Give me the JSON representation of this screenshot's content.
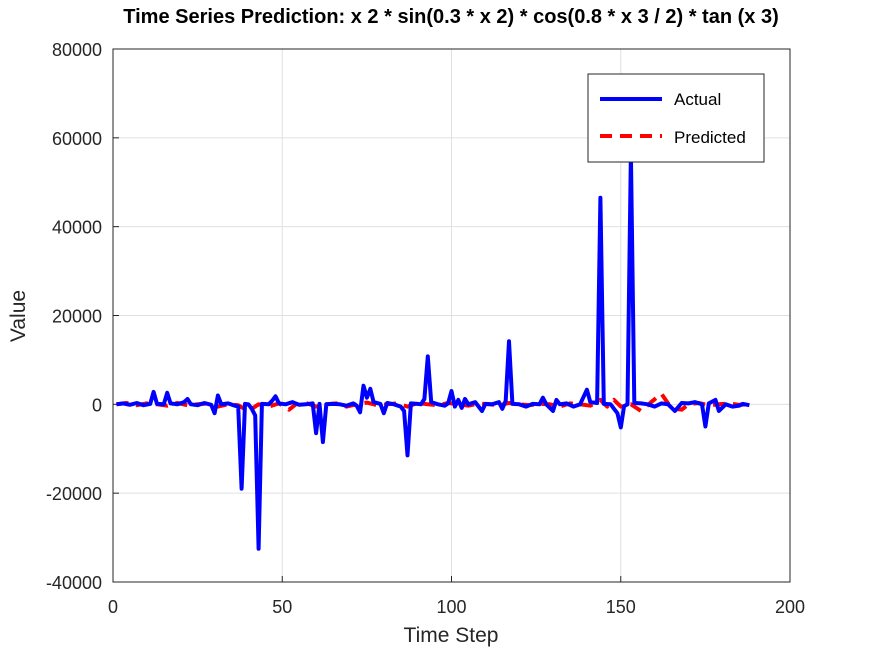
{
  "chart_data": {
    "type": "line",
    "title": "Time Series Prediction: x  2 * sin(0.3 * x  2) * cos(0.8 * x  3 / 2) * tan (x  3)",
    "xlabel": "Time Step",
    "ylabel": "Value",
    "xlim": [
      0,
      200
    ],
    "ylim": [
      -40000,
      80000
    ],
    "xticks": [
      0,
      50,
      100,
      150,
      200
    ],
    "yticks": [
      -40000,
      -20000,
      0,
      20000,
      40000,
      60000,
      80000
    ],
    "grid": true,
    "legend_position": "top-right",
    "series": [
      {
        "name": "Actual",
        "color": "#0000ff",
        "style": "solid",
        "points": [
          [
            1,
            0
          ],
          [
            3,
            200
          ],
          [
            5,
            -100
          ],
          [
            7,
            300
          ],
          [
            9,
            -200
          ],
          [
            11,
            100
          ],
          [
            12,
            2800
          ],
          [
            13,
            100
          ],
          [
            15,
            0
          ],
          [
            16,
            2600
          ],
          [
            17,
            200
          ],
          [
            19,
            0
          ],
          [
            21,
            500
          ],
          [
            22,
            1200
          ],
          [
            23,
            0
          ],
          [
            25,
            -200
          ],
          [
            27,
            300
          ],
          [
            29,
            -100
          ],
          [
            30,
            -2000
          ],
          [
            31,
            2000
          ],
          [
            32,
            0
          ],
          [
            34,
            200
          ],
          [
            36,
            -300
          ],
          [
            37,
            -500
          ],
          [
            38,
            -19000
          ],
          [
            39,
            100
          ],
          [
            40,
            0
          ],
          [
            41,
            -1000
          ],
          [
            42,
            -2500
          ],
          [
            43,
            -32500
          ],
          [
            44,
            100
          ],
          [
            46,
            0
          ],
          [
            47,
            800
          ],
          [
            48,
            1800
          ],
          [
            49,
            200
          ],
          [
            51,
            0
          ],
          [
            53,
            500
          ],
          [
            55,
            -100
          ],
          [
            57,
            0
          ],
          [
            59,
            200
          ],
          [
            60,
            -6500
          ],
          [
            61,
            100
          ],
          [
            62,
            -8500
          ],
          [
            63,
            0
          ],
          [
            65,
            100
          ],
          [
            67,
            0
          ],
          [
            69,
            -300
          ],
          [
            71,
            200
          ],
          [
            72,
            -300
          ],
          [
            73,
            -1800
          ],
          [
            74,
            4200
          ],
          [
            75,
            1500
          ],
          [
            76,
            3500
          ],
          [
            77,
            500
          ],
          [
            79,
            100
          ],
          [
            80,
            -2000
          ],
          [
            81,
            300
          ],
          [
            83,
            0
          ],
          [
            85,
            -500
          ],
          [
            86,
            -1500
          ],
          [
            87,
            -11500
          ],
          [
            88,
            200
          ],
          [
            90,
            100
          ],
          [
            91,
            0
          ],
          [
            92,
            1200
          ],
          [
            93,
            10800
          ],
          [
            94,
            500
          ],
          [
            96,
            0
          ],
          [
            98,
            -300
          ],
          [
            99,
            200
          ],
          [
            100,
            3000
          ],
          [
            101,
            -500
          ],
          [
            102,
            1000
          ],
          [
            103,
            -800
          ],
          [
            104,
            1200
          ],
          [
            105,
            0
          ],
          [
            107,
            500
          ],
          [
            109,
            -1500
          ],
          [
            110,
            100
          ],
          [
            112,
            0
          ],
          [
            114,
            500
          ],
          [
            115,
            -1000
          ],
          [
            116,
            800
          ],
          [
            117,
            14200
          ],
          [
            118,
            100
          ],
          [
            120,
            0
          ],
          [
            122,
            -500
          ],
          [
            124,
            100
          ],
          [
            126,
            0
          ],
          [
            127,
            1500
          ],
          [
            128,
            0
          ],
          [
            130,
            -1500
          ],
          [
            131,
            1000
          ],
          [
            132,
            0
          ],
          [
            134,
            200
          ],
          [
            136,
            -500
          ],
          [
            138,
            0
          ],
          [
            140,
            3300
          ],
          [
            141,
            500
          ],
          [
            143,
            300
          ],
          [
            144,
            46500
          ],
          [
            145,
            100
          ],
          [
            147,
            0
          ],
          [
            149,
            -2000
          ],
          [
            150,
            -5200
          ],
          [
            151,
            -400
          ],
          [
            152,
            0
          ],
          [
            153,
            56500
          ],
          [
            154,
            300
          ],
          [
            156,
            200
          ],
          [
            158,
            0
          ],
          [
            160,
            -500
          ],
          [
            162,
            200
          ],
          [
            164,
            0
          ],
          [
            166,
            -1500
          ],
          [
            168,
            300
          ],
          [
            170,
            200
          ],
          [
            172,
            500
          ],
          [
            174,
            0
          ],
          [
            175,
            -5000
          ],
          [
            176,
            200
          ],
          [
            178,
            1000
          ],
          [
            179,
            -1500
          ],
          [
            181,
            0
          ],
          [
            183,
            -500
          ],
          [
            185,
            -300
          ],
          [
            186,
            100
          ],
          [
            188,
            -200
          ]
        ]
      },
      {
        "name": "Predicted",
        "color": "#ff0000",
        "style": "dashed",
        "points": [
          [
            1,
            0
          ],
          [
            4,
            300
          ],
          [
            7,
            -200
          ],
          [
            10,
            200
          ],
          [
            13,
            0
          ],
          [
            16,
            -300
          ],
          [
            19,
            300
          ],
          [
            22,
            -200
          ],
          [
            25,
            0
          ],
          [
            28,
            200
          ],
          [
            31,
            -500
          ],
          [
            34,
            0
          ],
          [
            37,
            -200
          ],
          [
            40,
            -1500
          ],
          [
            43,
            0
          ],
          [
            46,
            -500
          ],
          [
            49,
            200
          ],
          [
            52,
            -1200
          ],
          [
            54,
            0
          ],
          [
            57,
            300
          ],
          [
            60,
            -500
          ],
          [
            63,
            0
          ],
          [
            66,
            200
          ],
          [
            69,
            -500
          ],
          [
            72,
            0
          ],
          [
            75,
            400
          ],
          [
            78,
            -200
          ],
          [
            81,
            0
          ],
          [
            84,
            200
          ],
          [
            87,
            -500
          ],
          [
            90,
            300
          ],
          [
            93,
            0
          ],
          [
            96,
            -200
          ],
          [
            99,
            300
          ],
          [
            102,
            0
          ],
          [
            105,
            -300
          ],
          [
            108,
            200
          ],
          [
            111,
            0
          ],
          [
            114,
            -200
          ],
          [
            117,
            300
          ],
          [
            120,
            0
          ],
          [
            123,
            -200
          ],
          [
            126,
            100
          ],
          [
            129,
            0
          ],
          [
            132,
            -500
          ],
          [
            135,
            200
          ],
          [
            138,
            0
          ],
          [
            141,
            -300
          ],
          [
            144,
            1000
          ],
          [
            146,
            -500
          ],
          [
            148,
            1000
          ],
          [
            150,
            -500
          ],
          [
            153,
            0
          ],
          [
            156,
            -1500
          ],
          [
            159,
            500
          ],
          [
            162,
            2400
          ],
          [
            164,
            200
          ],
          [
            166,
            -1000
          ],
          [
            168,
            -1200
          ],
          [
            170,
            0
          ],
          [
            173,
            300
          ],
          [
            176,
            -200
          ],
          [
            179,
            0
          ],
          [
            182,
            200
          ],
          [
            185,
            -100
          ],
          [
            188,
            0
          ]
        ]
      }
    ]
  }
}
